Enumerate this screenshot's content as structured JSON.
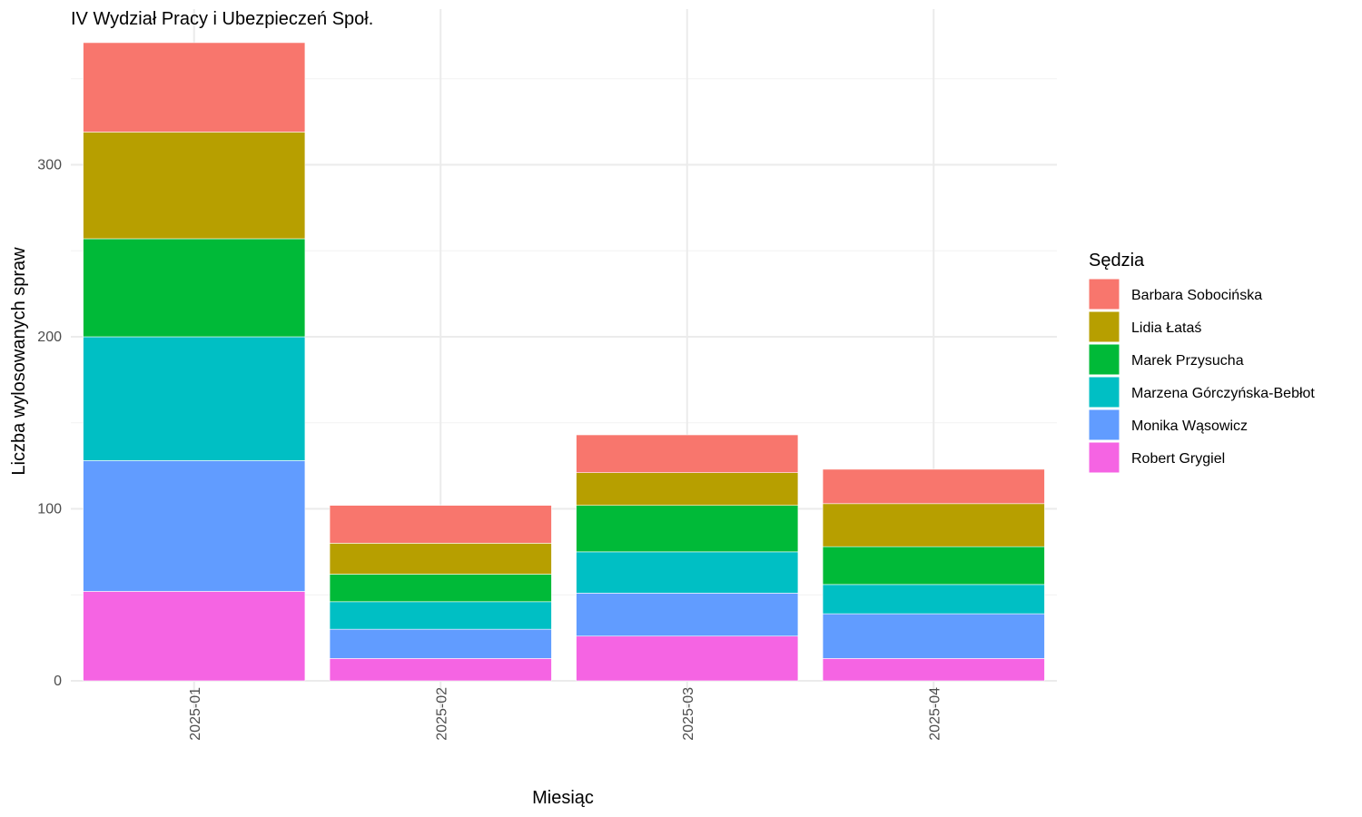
{
  "chart_data": {
    "type": "bar",
    "stacked": true,
    "title": "IV Wydział Pracy i Ubezpieczeń Społ.",
    "xlabel": "Miesiąc",
    "ylabel": "Liczba wylosowanych spraw",
    "categories": [
      "2025-01",
      "2025-02",
      "2025-03",
      "2025-04"
    ],
    "ylim": [
      0,
      390
    ],
    "yticks": [
      0,
      100,
      200,
      300
    ],
    "grid": true,
    "legend": {
      "title": "Sędzia",
      "position": "right"
    },
    "series": [
      {
        "name": "Robert Grygiel",
        "color": "#F564E3",
        "values": [
          52,
          13,
          26,
          13
        ]
      },
      {
        "name": "Monika Wąsowicz",
        "color": "#619CFF",
        "values": [
          76,
          17,
          25,
          26
        ]
      },
      {
        "name": "Marzena Górczyńska-Bebłot",
        "color": "#00BFC4",
        "values": [
          72,
          16,
          24,
          17
        ]
      },
      {
        "name": "Marek Przysucha",
        "color": "#00BA38",
        "values": [
          57,
          16,
          27,
          22
        ]
      },
      {
        "name": "Lidia Łataś",
        "color": "#B79F00",
        "values": [
          62,
          18,
          19,
          25
        ]
      },
      {
        "name": "Barbara Sobocińska",
        "color": "#F8766D",
        "values": [
          52,
          22,
          22,
          20
        ]
      }
    ]
  }
}
